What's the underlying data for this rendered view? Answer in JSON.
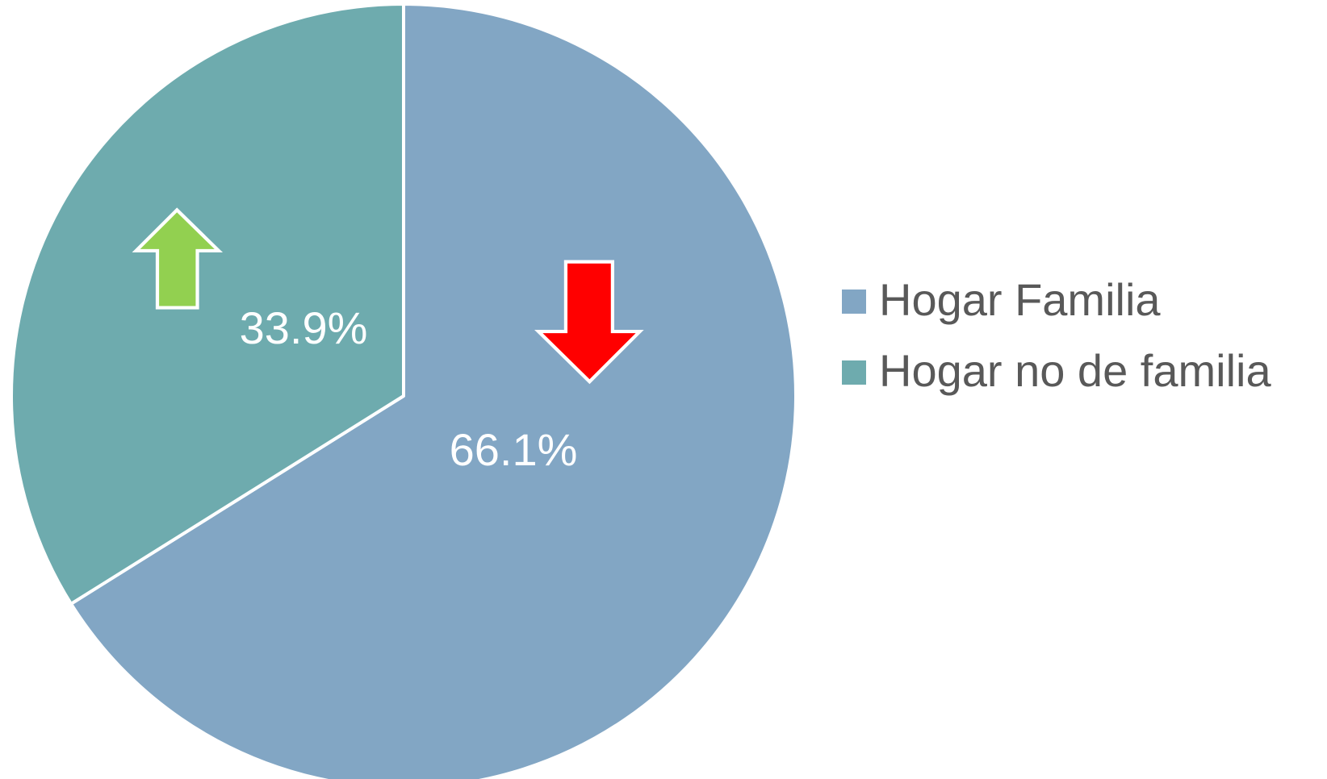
{
  "chart_data": {
    "type": "pie",
    "categories": [
      "Hogar Familia",
      "Hogar no de familia"
    ],
    "values": [
      66.1,
      33.9
    ],
    "value_labels": [
      "66.1%",
      "33.9%"
    ],
    "colors": [
      "#82a6c4",
      "#6eabae"
    ],
    "legend": "right"
  }
}
